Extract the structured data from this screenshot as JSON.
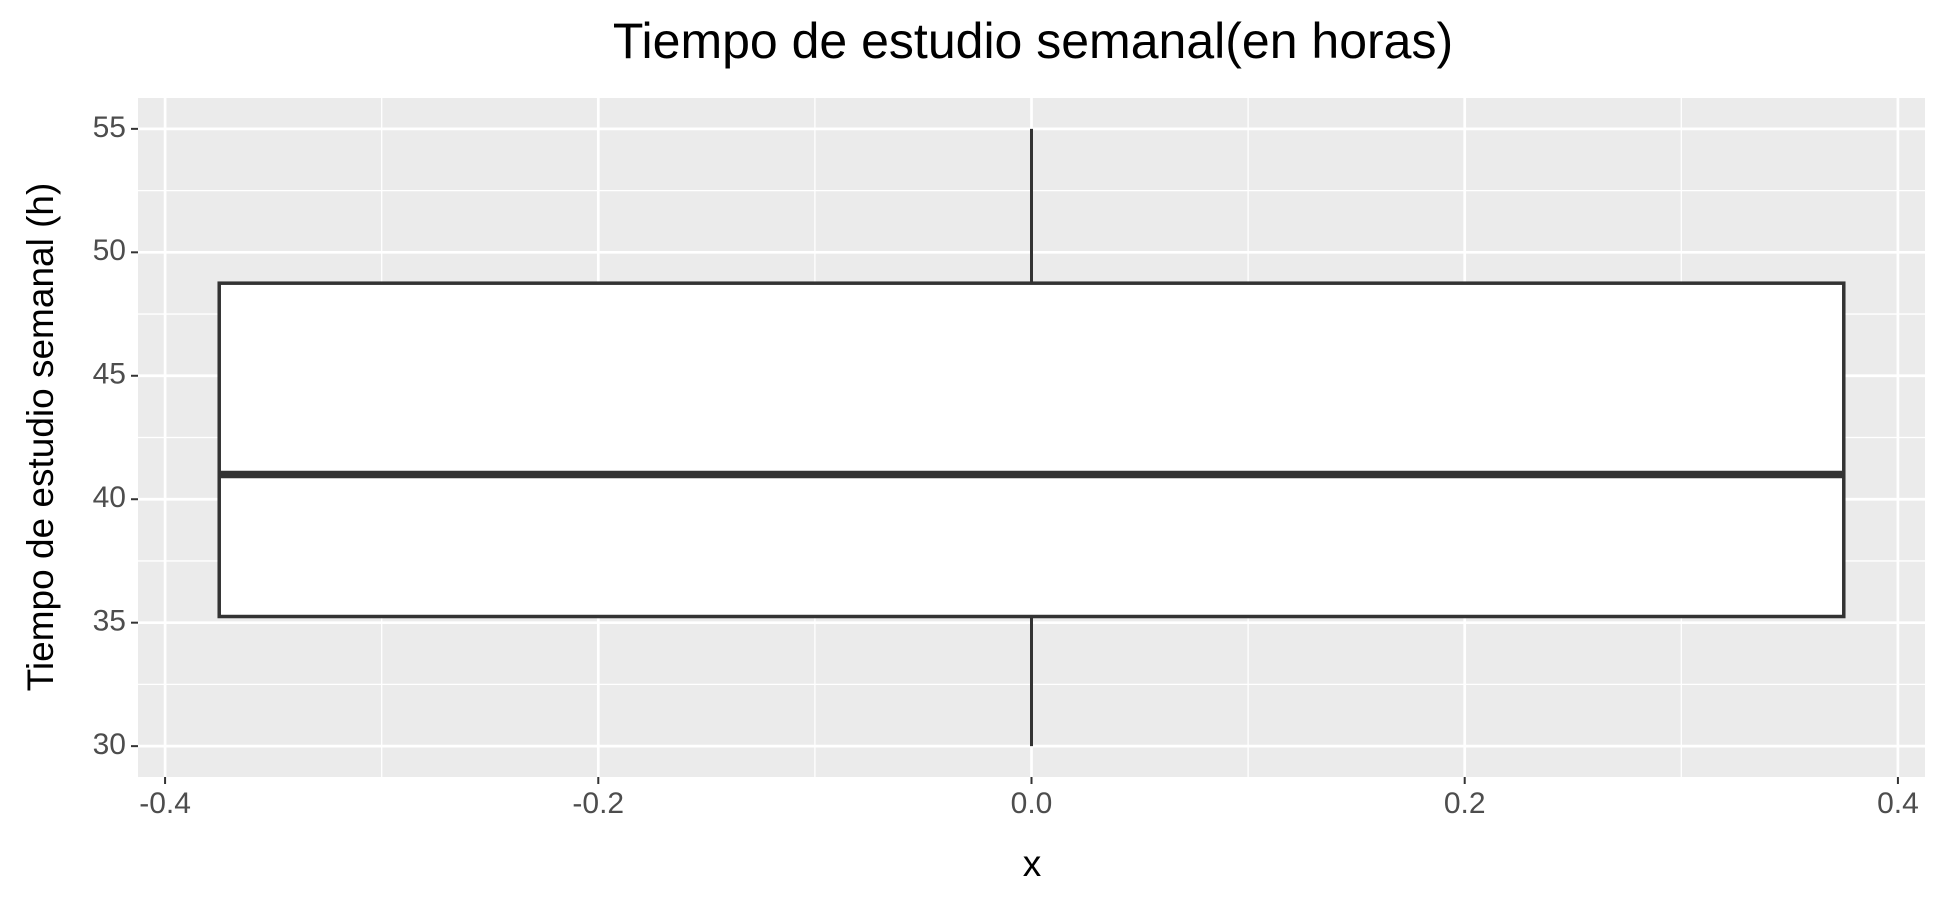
{
  "chart_data": {
    "type": "boxplot",
    "title": "Tiempo de estudio semanal(en horas)",
    "x_label": "x",
    "y_label": "Tiempo de estudio semanal (h)",
    "boxes": [
      {
        "x": 0,
        "min": 30,
        "q1": 35.25,
        "median": 41,
        "q3": 48.75,
        "max": 55
      }
    ],
    "fill": "#ffffff",
    "stroke": "#333333",
    "background": "#ebebeb",
    "grid": true,
    "xlim": [
      -0.4125,
      0.4125
    ],
    "xticks": [
      -0.4,
      -0.2,
      {
        "value": 0,
        "label": "0.0"
      },
      0.2,
      0.4
    ],
    "ylim": [
      28.75,
      56.25
    ],
    "yticks": [
      30,
      35,
      40,
      45,
      50,
      55
    ]
  }
}
